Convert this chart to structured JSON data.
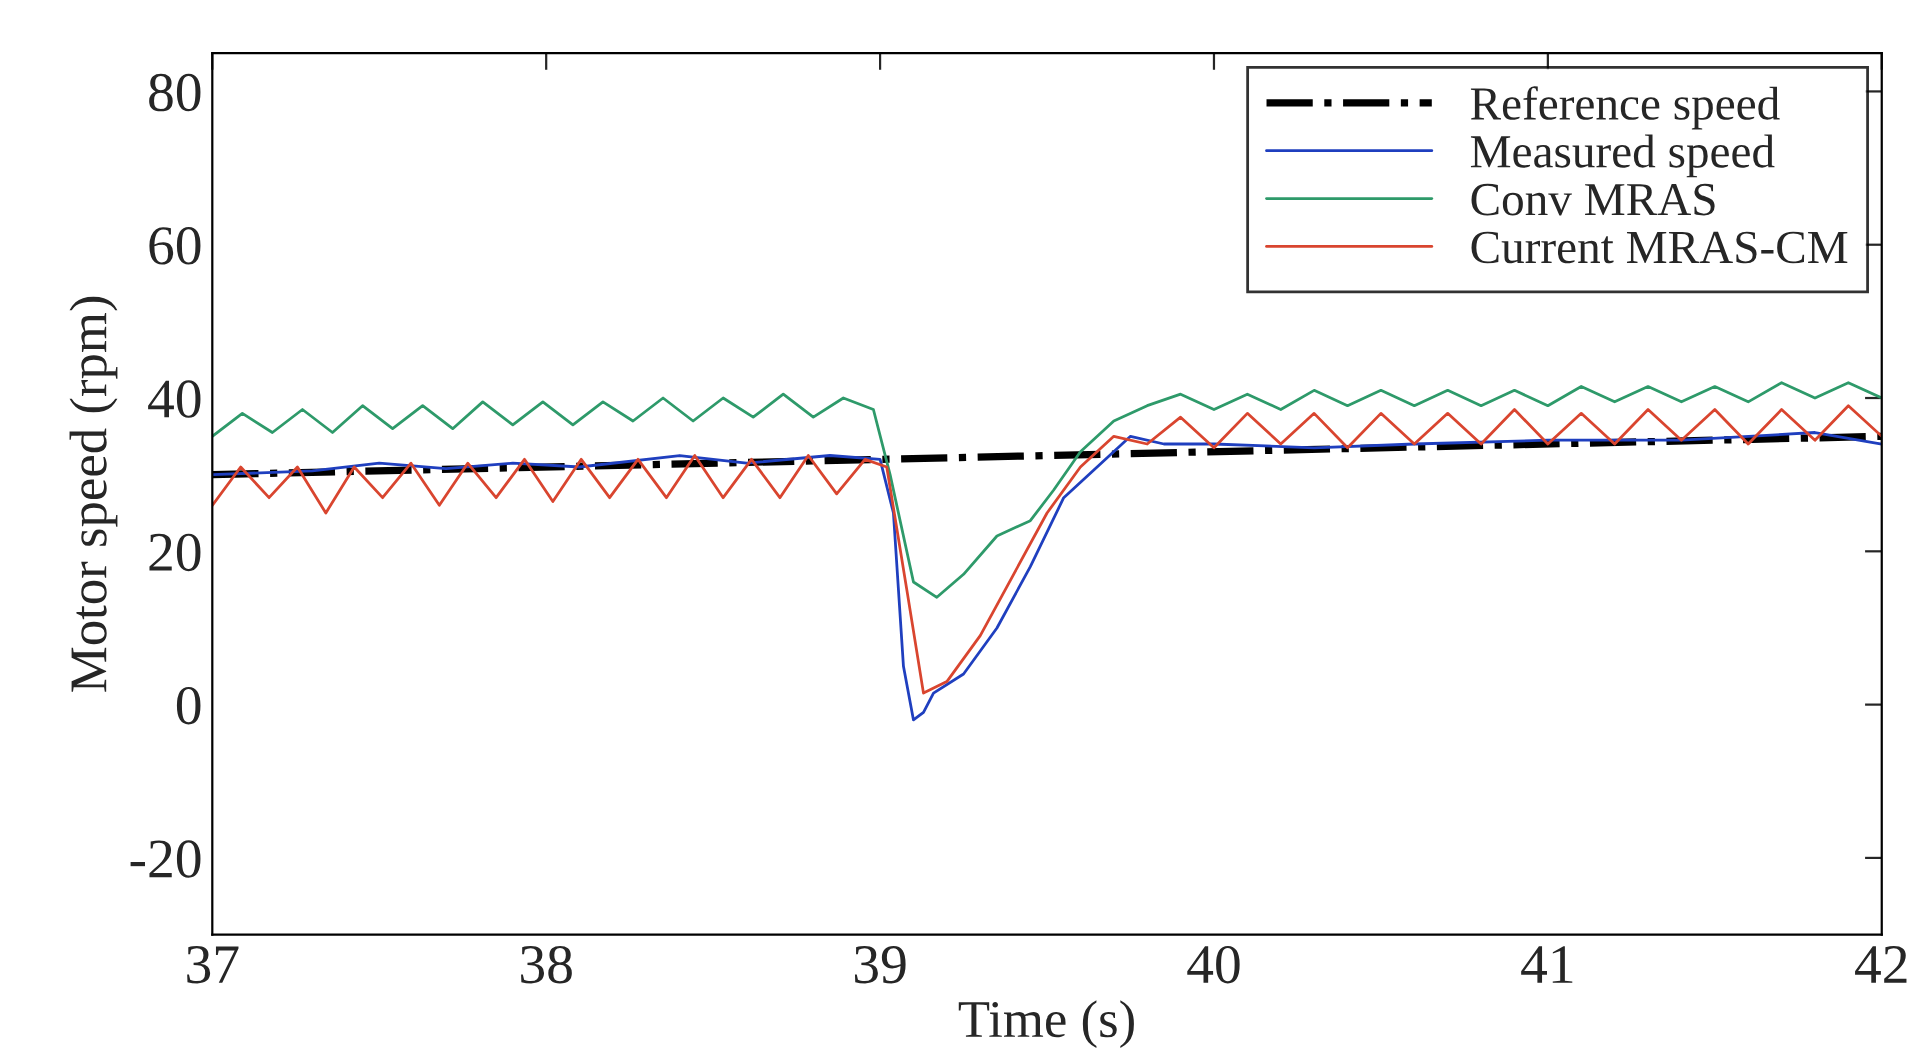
{
  "chart_data": {
    "type": "line",
    "xlabel": "Time (s)",
    "ylabel": "Motor speed (rpm)",
    "xlim": [
      37,
      42
    ],
    "ylim": [
      -30,
      85
    ],
    "xticks": [
      37,
      38,
      39,
      40,
      41,
      42
    ],
    "yticks": [
      -20,
      0,
      20,
      40,
      60,
      80
    ],
    "legend": "top right",
    "grid": false,
    "series": [
      {
        "name": "Reference speed",
        "color": "#000000",
        "line_style": "dashdot",
        "x": [
          37,
          42
        ],
        "values": [
          30,
          35
        ]
      },
      {
        "name": "Measured speed",
        "color": "#1f3fbf",
        "line_style": "solid",
        "x": [
          37,
          37.3,
          37.5,
          37.7,
          37.9,
          38.1,
          38.4,
          38.6,
          38.85,
          39.0,
          39.04,
          39.07,
          39.1,
          39.13,
          39.16,
          39.25,
          39.35,
          39.45,
          39.55,
          39.65,
          39.75,
          39.85,
          40,
          40.3,
          40.6,
          41,
          41.4,
          41.8,
          42
        ],
        "values": [
          30,
          30.5,
          31.5,
          30.8,
          31.5,
          31,
          32.5,
          31.5,
          32.5,
          32,
          25,
          5,
          -2,
          -1,
          1.5,
          4,
          10,
          18,
          27,
          31,
          35,
          34,
          34,
          33.5,
          34,
          34.5,
          34.5,
          35.5,
          34
        ]
      },
      {
        "name": "Conv MRAS",
        "color": "#2e9a6a",
        "line_style": "solid",
        "x": [
          37.0,
          37.09,
          37.18,
          37.27,
          37.36,
          37.45,
          37.54,
          37.63,
          37.72,
          37.81,
          37.9,
          37.99,
          38.08,
          38.17,
          38.26,
          38.35,
          38.44,
          38.53,
          38.62,
          38.71,
          38.8,
          38.89,
          38.98,
          39.03,
          39.1,
          39.17,
          39.25,
          39.35,
          39.45,
          39.52,
          39.6,
          39.7,
          39.8,
          39.9,
          40.0,
          40.1,
          40.2,
          40.3,
          40.4,
          40.5,
          40.6,
          40.7,
          40.8,
          40.9,
          41.0,
          41.1,
          41.2,
          41.3,
          41.4,
          41.5,
          41.6,
          41.7,
          41.8,
          41.9,
          42.0
        ],
        "values": [
          35,
          38,
          35.5,
          38.5,
          35.5,
          39,
          36,
          39,
          36,
          39.5,
          36.5,
          39.5,
          36.5,
          39.5,
          37,
          40,
          37,
          40,
          37.5,
          40.5,
          37.5,
          40,
          38.5,
          30,
          16,
          14,
          17,
          22,
          24,
          28,
          33,
          37,
          39,
          40.5,
          38.5,
          40.5,
          38.5,
          41,
          39,
          41,
          39,
          41,
          39,
          41,
          39,
          41.5,
          39.5,
          41.5,
          39.5,
          41.5,
          39.5,
          42,
          40,
          42,
          40
        ]
      },
      {
        "name": "Current MRAS-CM",
        "color": "#d9452f",
        "line_style": "solid",
        "x": [
          37.0,
          37.085,
          37.17,
          37.255,
          37.34,
          37.425,
          37.51,
          37.595,
          37.68,
          37.765,
          37.85,
          37.935,
          38.02,
          38.105,
          38.19,
          38.275,
          38.36,
          38.445,
          38.53,
          38.615,
          38.7,
          38.785,
          38.87,
          38.955,
          39.02,
          39.08,
          39.13,
          39.2,
          39.3,
          39.4,
          39.5,
          39.6,
          39.7,
          39.8,
          39.9,
          40.0,
          40.1,
          40.2,
          40.3,
          40.4,
          40.5,
          40.6,
          40.7,
          40.8,
          40.9,
          41.0,
          41.1,
          41.2,
          41.3,
          41.4,
          41.5,
          41.6,
          41.7,
          41.8,
          41.9,
          42.0
        ],
        "values": [
          26,
          31,
          27,
          31,
          25,
          31,
          27,
          31.5,
          26,
          31.5,
          27,
          32,
          26.5,
          32,
          27,
          32,
          27,
          32.5,
          27,
          32,
          27,
          32.5,
          27.5,
          32,
          31,
          15,
          1.5,
          3,
          9,
          17,
          25,
          31,
          35,
          34,
          37.5,
          33.5,
          38,
          34,
          38,
          33.5,
          38,
          34,
          38,
          34,
          38.5,
          34,
          38,
          34,
          38.5,
          34.5,
          38.5,
          34,
          38.5,
          34.5,
          39,
          35
        ]
      }
    ]
  }
}
